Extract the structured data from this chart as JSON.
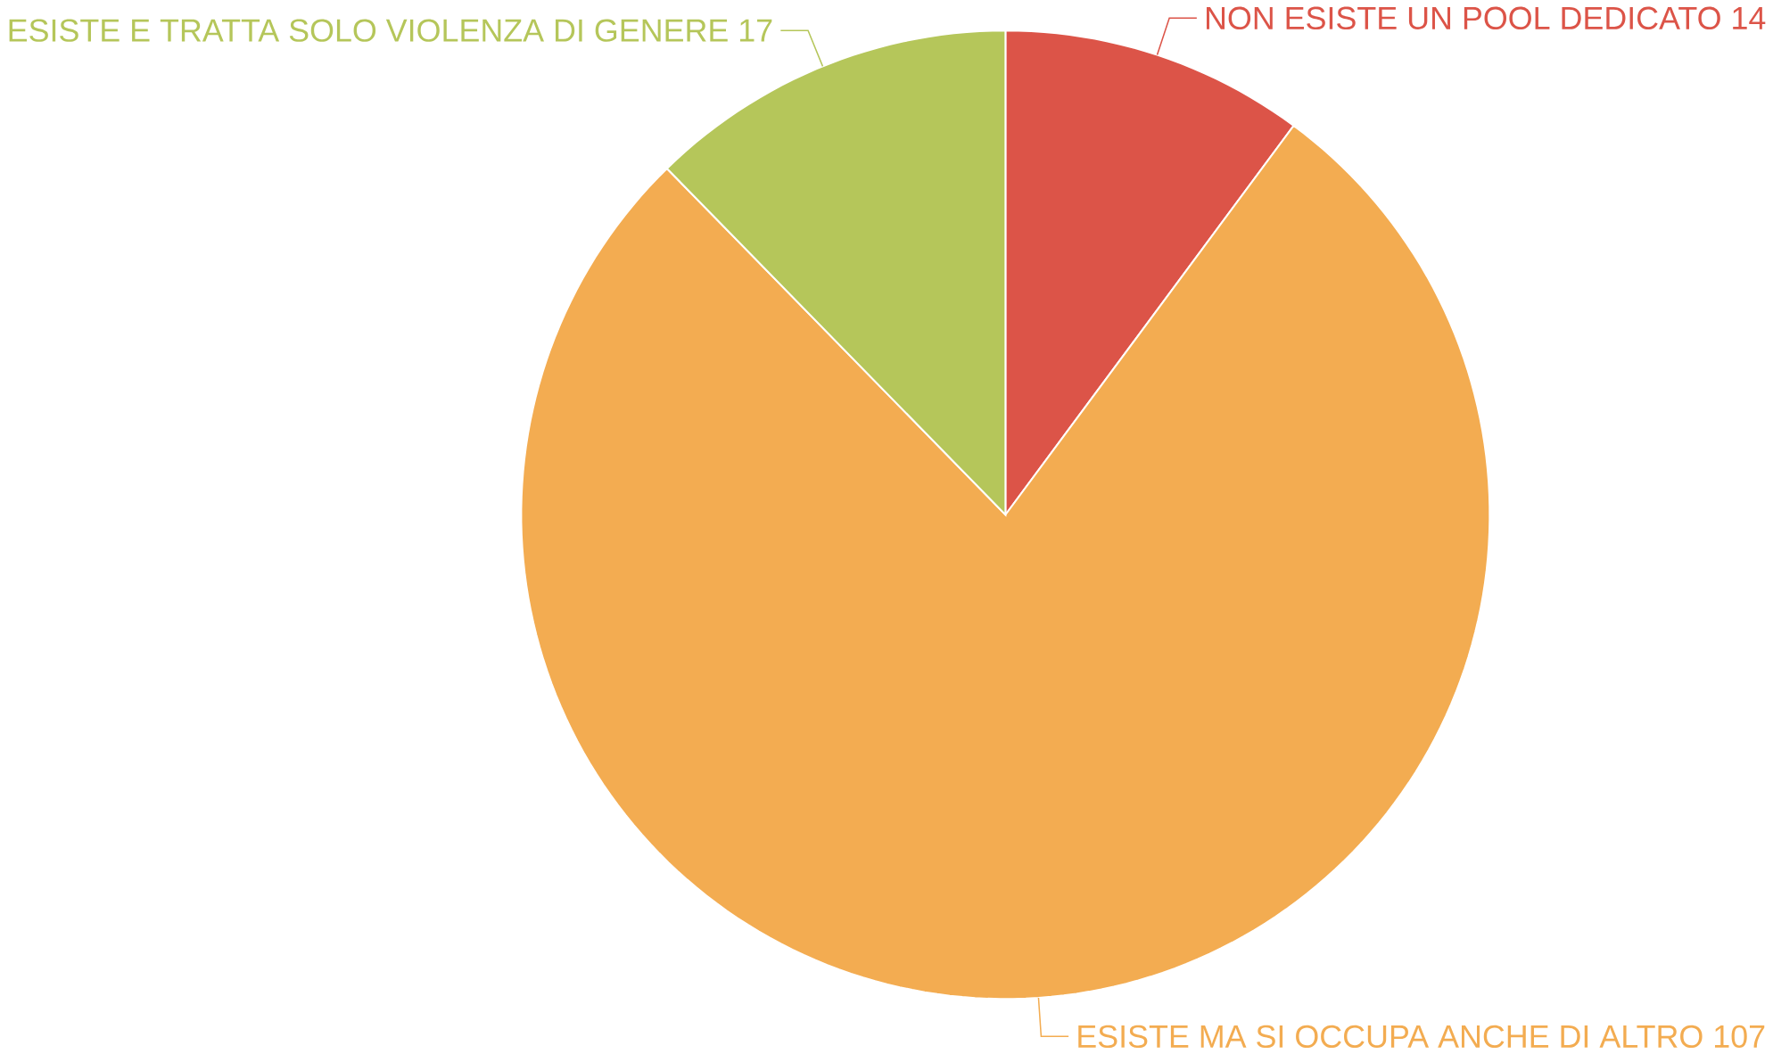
{
  "chart_data": {
    "type": "pie",
    "categories": [
      "NON ESISTE UN POOL DEDICATO",
      "ESISTE MA SI OCCUPA ANCHE DI ALTRO",
      "ESISTE E TRATTA SOLO VIOLENZA DI GENERE"
    ],
    "values": [
      14,
      107,
      17
    ],
    "colors": [
      "#dc5448",
      "#f3ac51",
      "#b5c65a"
    ],
    "data_labels": true
  }
}
